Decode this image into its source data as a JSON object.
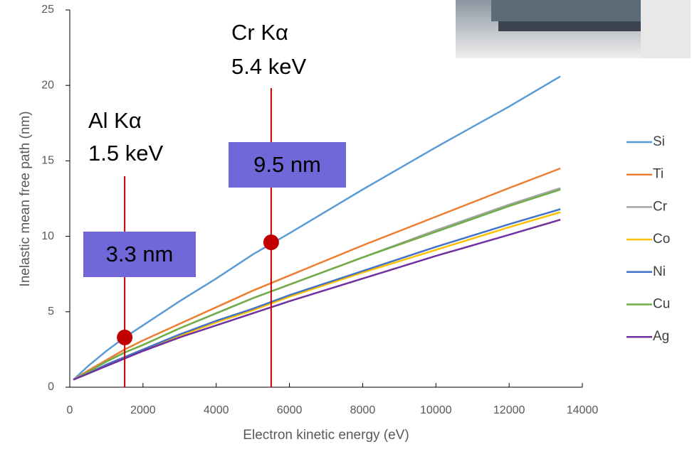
{
  "chart_data": {
    "type": "line",
    "x_label": "Electron kinetic energy (eV)",
    "y_label": "Inelastic mean free path (nm)",
    "x": [
      100,
      500,
      1000,
      1500,
      2000,
      3000,
      4000,
      5000,
      6000,
      8000,
      10000,
      12000,
      13400
    ],
    "series": [
      {
        "name": "Si",
        "color": "#5b9bd5",
        "values": [
          0.5,
          1.4,
          2.4,
          3.3,
          4.1,
          5.7,
          7.2,
          8.8,
          10.2,
          13.1,
          15.9,
          18.6,
          20.6
        ]
      },
      {
        "name": "Ti",
        "color": "#ed7d31",
        "values": [
          0.5,
          1.1,
          1.8,
          2.5,
          3.1,
          4.2,
          5.3,
          6.4,
          7.4,
          9.4,
          11.3,
          13.2,
          14.5
        ]
      },
      {
        "name": "Cr",
        "color": "#a5a5a5",
        "values": [
          0.5,
          1.0,
          1.7,
          2.3,
          2.8,
          3.9,
          4.9,
          5.9,
          6.8,
          8.6,
          10.4,
          12.1,
          13.2
        ]
      },
      {
        "name": "Co",
        "color": "#ffc000",
        "values": [
          0.5,
          0.9,
          1.5,
          2.0,
          2.5,
          3.4,
          4.3,
          5.1,
          6.0,
          7.6,
          9.1,
          10.6,
          11.6
        ]
      },
      {
        "name": "Ni",
        "color": "#4472c4",
        "values": [
          0.5,
          0.9,
          1.5,
          2.0,
          2.5,
          3.5,
          4.4,
          5.2,
          6.1,
          7.7,
          9.3,
          10.8,
          11.8
        ]
      },
      {
        "name": "Cu",
        "color": "#70ad47",
        "values": [
          0.5,
          1.0,
          1.7,
          2.3,
          2.8,
          3.9,
          4.9,
          5.9,
          6.8,
          8.6,
          10.3,
          12.0,
          13.1
        ]
      },
      {
        "name": "Ag",
        "color": "#7030a0",
        "values": [
          0.5,
          0.9,
          1.4,
          1.9,
          2.4,
          3.3,
          4.1,
          4.9,
          5.7,
          7.2,
          8.7,
          10.1,
          11.1
        ]
      }
    ],
    "xlim": [
      0,
      14000
    ],
    "xticks": [
      0,
      2000,
      4000,
      6000,
      8000,
      10000,
      12000,
      14000
    ],
    "ylim": [
      0,
      25
    ],
    "yticks": [
      0,
      5,
      10,
      15,
      20,
      25
    ],
    "markers": [
      {
        "x": 1500,
        "y": 3.3,
        "lines": [
          "Al Kα",
          "1.5 keV"
        ],
        "box": "3.3 nm"
      },
      {
        "x": 5500,
        "y": 9.6,
        "lines": [
          "Cr Kα",
          "5.4 keV"
        ],
        "box": "9.5 nm"
      }
    ],
    "marker_color": "#c00000",
    "box_color": "#7068d8",
    "legend": "right"
  }
}
